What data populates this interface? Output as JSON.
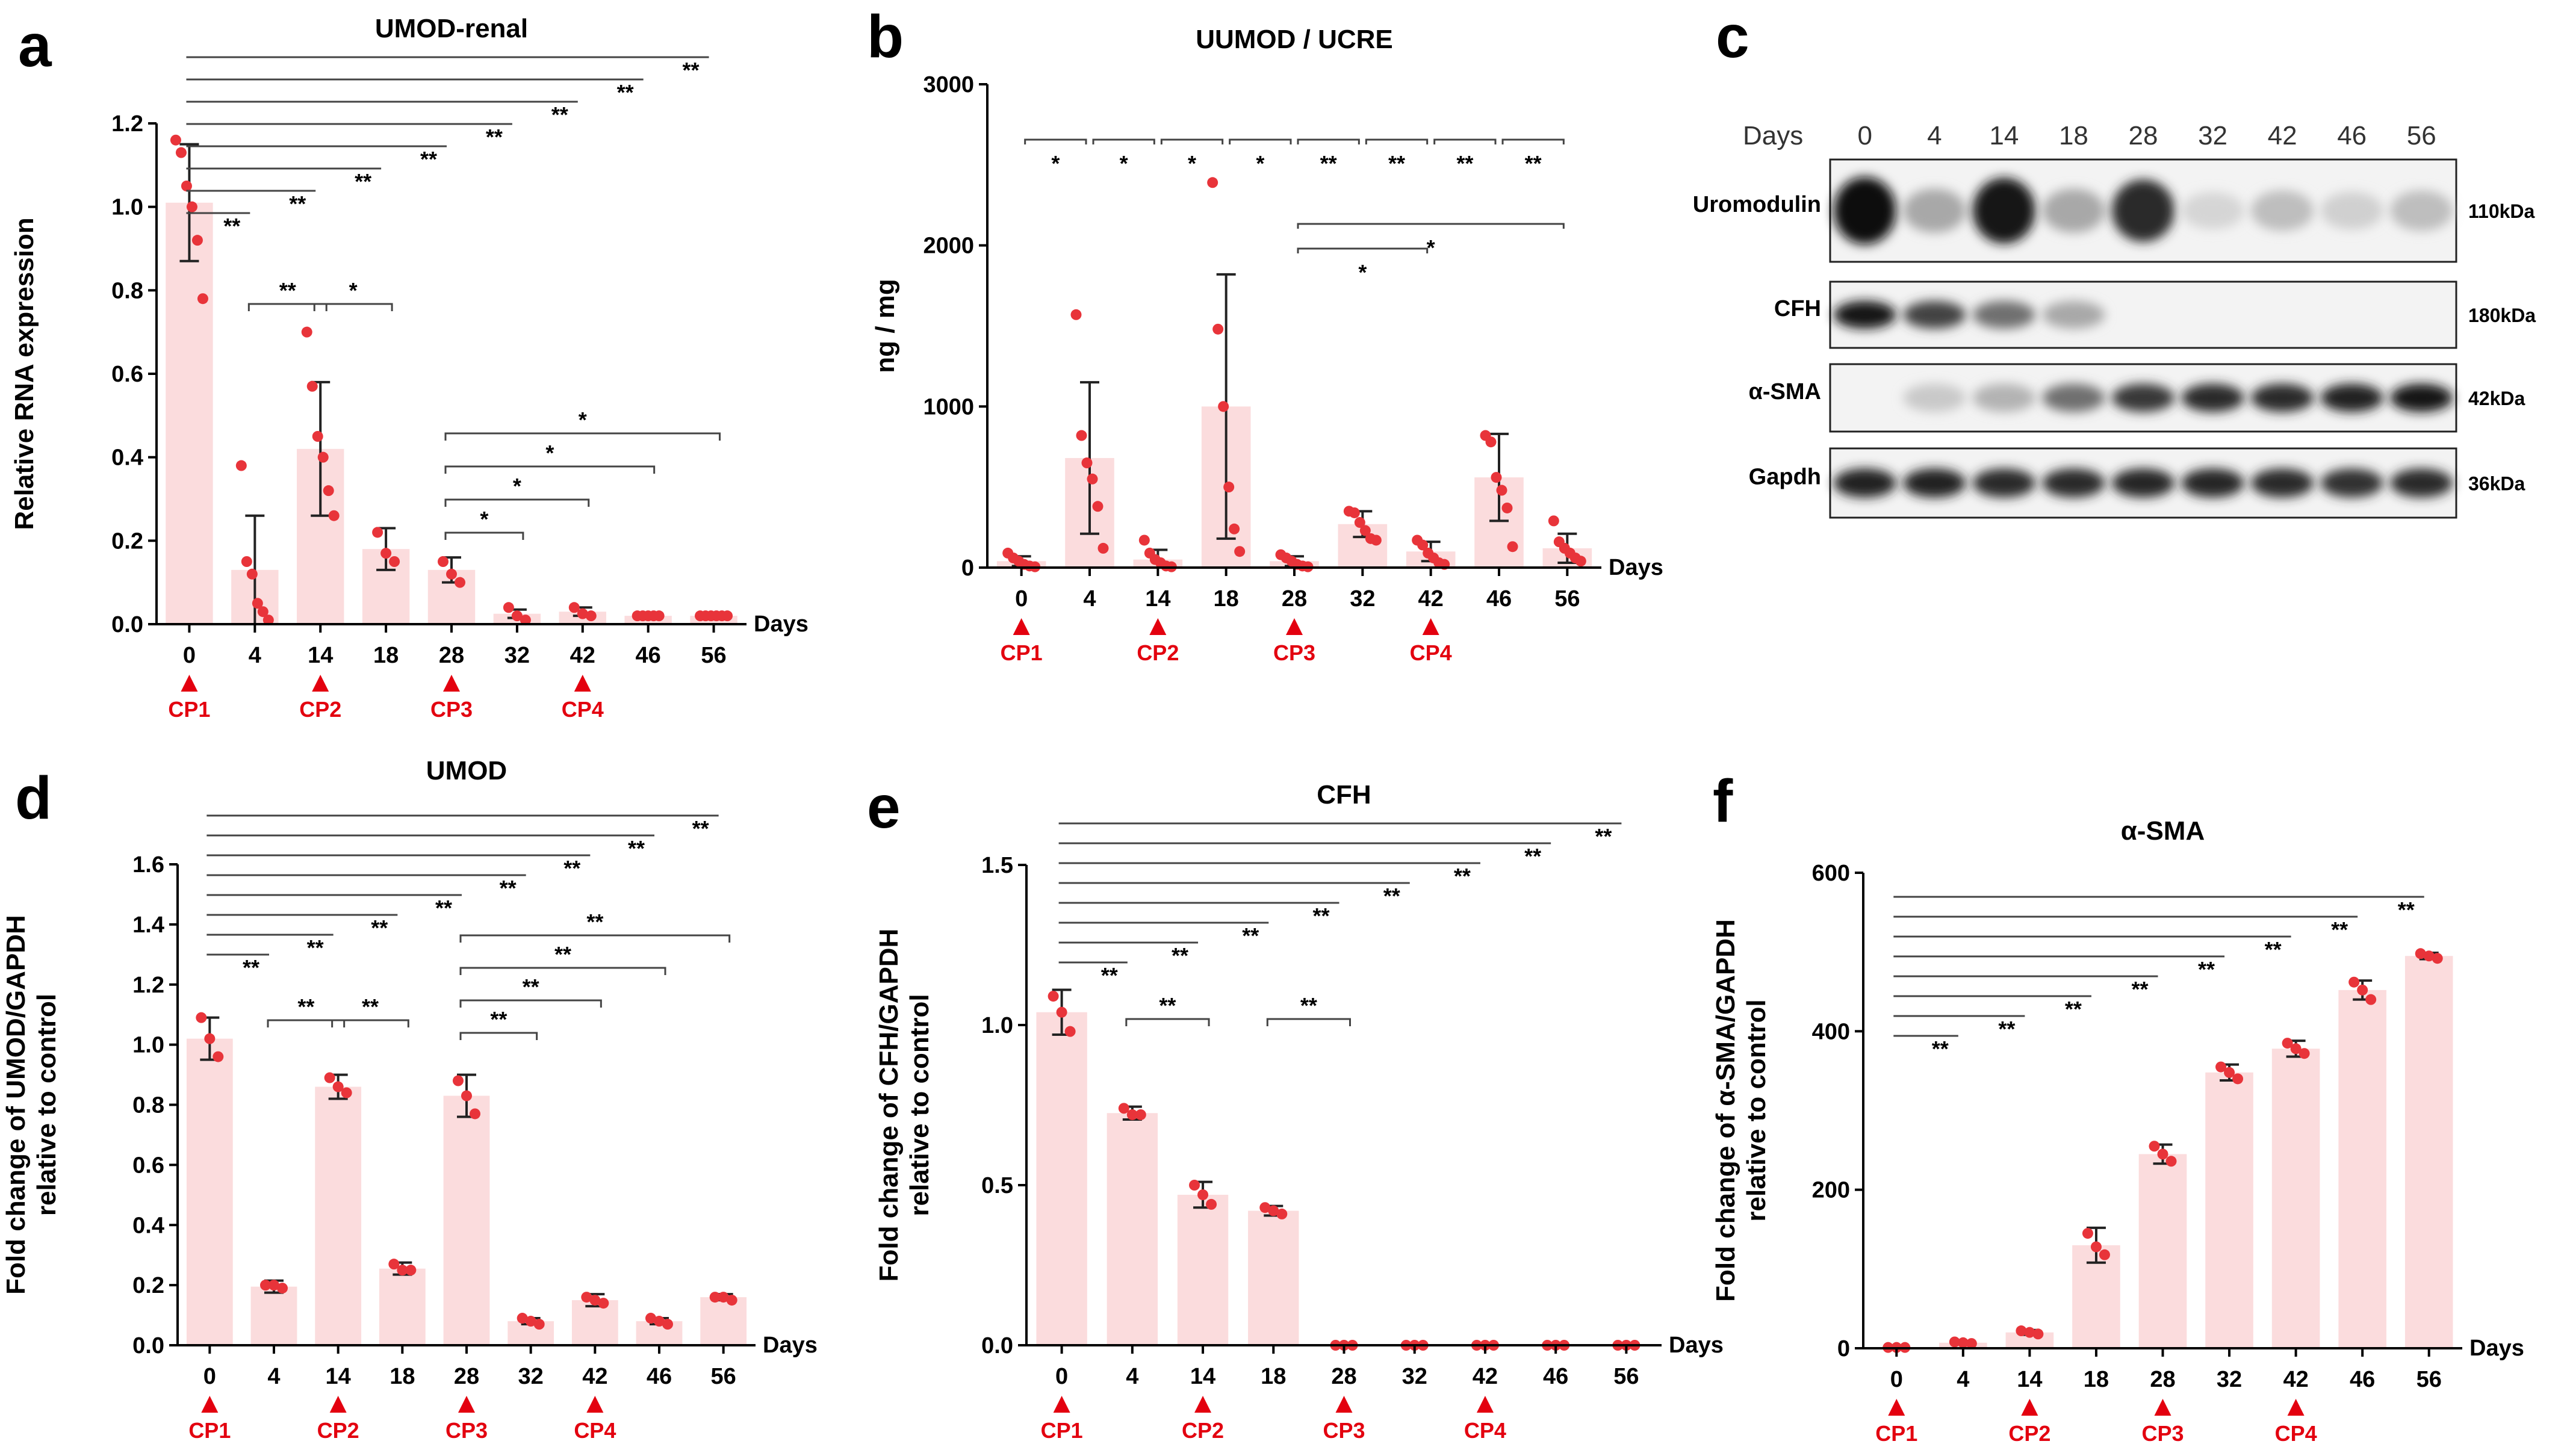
{
  "panels": [
    {
      "id": "a",
      "label": "a",
      "title": "UMOD-renal",
      "ylabel": "Relative RNA expression",
      "xlabel": "Days",
      "ylim": [
        0,
        1.2
      ],
      "yticks": [
        0,
        0.2,
        0.4,
        0.6,
        0.8,
        1.0,
        1.2
      ],
      "ytick_labels": [
        "0.0",
        "0.2",
        "0.4",
        "0.6",
        "0.8",
        "1.0",
        "1.2"
      ]
    },
    {
      "id": "b",
      "label": "b",
      "title": "UUMOD / UCRE",
      "ylabel": "ng / mg",
      "xlabel": "Days",
      "ylim": [
        0,
        3000
      ],
      "yticks": [
        0,
        1000,
        2000,
        3000
      ],
      "ytick_labels": [
        "0",
        "1000",
        "2000",
        "3000"
      ]
    },
    {
      "id": "d",
      "label": "d",
      "title": "UMOD",
      "ylabel": "Fold change of UMOD/GAPDH relative to control",
      "xlabel": "Days",
      "ylim": [
        0,
        1.6
      ],
      "yticks": [
        0,
        0.2,
        0.4,
        0.6,
        0.8,
        1.0,
        1.2,
        1.4,
        1.6
      ],
      "ytick_labels": [
        "0.0",
        "0.2",
        "0.4",
        "0.6",
        "0.8",
        "1.0",
        "1.2",
        "1.4",
        "1.6"
      ]
    },
    {
      "id": "e",
      "label": "e",
      "title": "CFH",
      "ylabel": "Fold change of CFH/GAPDH relative to control",
      "xlabel": "Days",
      "ylim": [
        0,
        1.5
      ],
      "yticks": [
        0,
        0.5,
        1.0,
        1.5
      ],
      "ytick_labels": [
        "0.0",
        "0.5",
        "1.0",
        "1.5"
      ]
    },
    {
      "id": "f",
      "label": "f",
      "title": "α-SMA",
      "ylabel": "Fold change of α-SMA/GAPDH relative to control",
      "xlabel": "Days",
      "ylim": [
        0,
        600
      ],
      "yticks": [
        0,
        200,
        400,
        600
      ],
      "ytick_labels": [
        "0",
        "200",
        "400",
        "600"
      ]
    }
  ],
  "chart_data": [
    {
      "panel": "a",
      "type": "bar",
      "title": "UMOD-renal",
      "categories": [
        "0",
        "4",
        "14",
        "18",
        "28",
        "32",
        "42",
        "46",
        "56"
      ],
      "values": [
        1.01,
        0.13,
        0.42,
        0.18,
        0.13,
        0.025,
        0.03,
        0.02,
        0.02
      ],
      "err": [
        0.14,
        0.13,
        0.16,
        0.05,
        0.03,
        0.01,
        0.01,
        0.005,
        0.005
      ],
      "points": [
        [
          1.16,
          1.13,
          1.05,
          1.0,
          0.92,
          0.78
        ],
        [
          0.38,
          0.15,
          0.12,
          0.05,
          0.03,
          0.01
        ],
        [
          0.7,
          0.57,
          0.45,
          0.4,
          0.32,
          0.26
        ],
        [
          0.22,
          0.17,
          0.15
        ],
        [
          0.15,
          0.12,
          0.1
        ],
        [
          0.04,
          0.02,
          0.01
        ],
        [
          0.04,
          0.025,
          0.02
        ],
        [
          0.02,
          0.02,
          0.02,
          0.02,
          0.02
        ],
        [
          0.02,
          0.02,
          0.02,
          0.02,
          0.02,
          0.02
        ]
      ],
      "ylim": [
        0,
        1.2
      ],
      "xlabel": "Days",
      "ylabel": "Relative RNA expression",
      "significance": [
        {
          "from": "0",
          "to": "4",
          "label": "**"
        },
        {
          "from": "0",
          "to": "14",
          "label": "**"
        },
        {
          "from": "0",
          "to": "18",
          "label": "**"
        },
        {
          "from": "0",
          "to": "28",
          "label": "**"
        },
        {
          "from": "0",
          "to": "32",
          "label": "**"
        },
        {
          "from": "0",
          "to": "42",
          "label": "**"
        },
        {
          "from": "0",
          "to": "46",
          "label": "**"
        },
        {
          "from": "0",
          "to": "56",
          "label": "**"
        },
        {
          "from": "4",
          "to": "14",
          "label": "**"
        },
        {
          "from": "14",
          "to": "18",
          "label": "*"
        },
        {
          "from": "28",
          "to": "32",
          "label": "*"
        },
        {
          "from": "28",
          "to": "42",
          "label": "*"
        },
        {
          "from": "28",
          "to": "46",
          "label": "*"
        },
        {
          "from": "28",
          "to": "56",
          "label": "*"
        }
      ],
      "markers": {
        "0": "CP1",
        "14": "CP2",
        "28": "CP3",
        "42": "CP4"
      }
    },
    {
      "panel": "b",
      "type": "bar",
      "title": "UUMOD / UCRE",
      "categories": [
        "0",
        "4",
        "14",
        "18",
        "28",
        "32",
        "42",
        "46",
        "56"
      ],
      "values": [
        40,
        680,
        50,
        1000,
        40,
        270,
        100,
        560,
        120
      ],
      "err": [
        30,
        470,
        60,
        820,
        30,
        80,
        60,
        270,
        90
      ],
      "points": [
        [
          90,
          60,
          40,
          20,
          10,
          5
        ],
        [
          1570,
          820,
          650,
          550,
          380,
          120
        ],
        [
          170,
          90,
          50,
          30,
          10,
          5
        ],
        [
          2390,
          1480,
          1000,
          500,
          240,
          100
        ],
        [
          80,
          60,
          40,
          20,
          10,
          5
        ],
        [
          350,
          340,
          280,
          230,
          180,
          170
        ],
        [
          170,
          140,
          90,
          60,
          30,
          20
        ],
        [
          820,
          780,
          560,
          480,
          370,
          130
        ],
        [
          290,
          160,
          120,
          90,
          60,
          40
        ]
      ],
      "ylim": [
        0,
        3000
      ],
      "xlabel": "Days",
      "ylabel": "ng / mg",
      "significance": [
        {
          "from": "0",
          "to": "4",
          "label": "*"
        },
        {
          "from": "4",
          "to": "14",
          "label": "*"
        },
        {
          "from": "14",
          "to": "18",
          "label": "*"
        },
        {
          "from": "18",
          "to": "28",
          "label": "*"
        },
        {
          "from": "28",
          "to": "32",
          "label": "**"
        },
        {
          "from": "32",
          "to": "42",
          "label": "**"
        },
        {
          "from": "42",
          "to": "46",
          "label": "**"
        },
        {
          "from": "46",
          "to": "56",
          "label": "**"
        },
        {
          "from": "28",
          "to": "42",
          "label": "*"
        },
        {
          "from": "28",
          "to": "56",
          "label": "*"
        }
      ],
      "markers": {
        "0": "CP1",
        "14": "CP2",
        "28": "CP3",
        "42": "CP4"
      }
    },
    {
      "panel": "d",
      "type": "bar",
      "title": "UMOD",
      "categories": [
        "0",
        "4",
        "14",
        "18",
        "28",
        "32",
        "42",
        "46",
        "56"
      ],
      "values": [
        1.02,
        0.195,
        0.86,
        0.255,
        0.83,
        0.08,
        0.15,
        0.08,
        0.16
      ],
      "err": [
        0.07,
        0.02,
        0.04,
        0.02,
        0.07,
        0.01,
        0.02,
        0.01,
        0.01
      ],
      "points": [
        [
          1.09,
          1.02,
          0.96
        ],
        [
          0.2,
          0.2,
          0.19
        ],
        [
          0.89,
          0.86,
          0.84
        ],
        [
          0.27,
          0.25,
          0.25
        ],
        [
          0.88,
          0.83,
          0.77
        ],
        [
          0.09,
          0.08,
          0.07
        ],
        [
          0.16,
          0.15,
          0.14
        ],
        [
          0.09,
          0.08,
          0.07
        ],
        [
          0.16,
          0.16,
          0.15
        ]
      ],
      "ylim": [
        0,
        1.6
      ],
      "xlabel": "Days",
      "ylabel": "Fold change of UMOD/GAPDH relative to control",
      "significance": [
        {
          "from": "0",
          "to": "4",
          "label": "**"
        },
        {
          "from": "0",
          "to": "14",
          "label": "**"
        },
        {
          "from": "0",
          "to": "18",
          "label": "**"
        },
        {
          "from": "0",
          "to": "28",
          "label": "**"
        },
        {
          "from": "0",
          "to": "32",
          "label": "**"
        },
        {
          "from": "0",
          "to": "42",
          "label": "**"
        },
        {
          "from": "0",
          "to": "46",
          "label": "**"
        },
        {
          "from": "0",
          "to": "56",
          "label": "**"
        },
        {
          "from": "4",
          "to": "14",
          "label": "**"
        },
        {
          "from": "14",
          "to": "18",
          "label": "**"
        },
        {
          "from": "28",
          "to": "32",
          "label": "**"
        },
        {
          "from": "28",
          "to": "42",
          "label": "**"
        },
        {
          "from": "28",
          "to": "46",
          "label": "**"
        },
        {
          "from": "28",
          "to": "56",
          "label": "**"
        }
      ],
      "markers": {
        "0": "CP1",
        "14": "CP2",
        "28": "CP3",
        "42": "CP4"
      }
    },
    {
      "panel": "e",
      "type": "bar",
      "title": "CFH",
      "categories": [
        "0",
        "4",
        "14",
        "18",
        "28",
        "32",
        "42",
        "46",
        "56"
      ],
      "values": [
        1.04,
        0.725,
        0.47,
        0.42,
        0.0,
        0.0,
        0.0,
        0.0,
        0.0
      ],
      "err": [
        0.07,
        0.02,
        0.04,
        0.015,
        0,
        0,
        0,
        0,
        0
      ],
      "points": [
        [
          1.09,
          1.04,
          0.98
        ],
        [
          0.74,
          0.72,
          0.72
        ],
        [
          0.5,
          0.47,
          0.44
        ],
        [
          0.43,
          0.42,
          0.41
        ],
        [
          0,
          0,
          0
        ],
        [
          0,
          0,
          0
        ],
        [
          0,
          0,
          0
        ],
        [
          0,
          0,
          0
        ],
        [
          0,
          0,
          0
        ]
      ],
      "ylim": [
        0,
        1.5
      ],
      "xlabel": "Days",
      "ylabel": "Fold change of CFH/GAPDH relative to control",
      "significance": [
        {
          "from": "0",
          "to": "4",
          "label": "**"
        },
        {
          "from": "0",
          "to": "14",
          "label": "**"
        },
        {
          "from": "0",
          "to": "18",
          "label": "**"
        },
        {
          "from": "0",
          "to": "28",
          "label": "**"
        },
        {
          "from": "0",
          "to": "32",
          "label": "**"
        },
        {
          "from": "0",
          "to": "42",
          "label": "**"
        },
        {
          "from": "0",
          "to": "46",
          "label": "**"
        },
        {
          "from": "0",
          "to": "56",
          "label": "**"
        },
        {
          "from": "4",
          "to": "14",
          "label": "**"
        },
        {
          "from": "18",
          "to": "28",
          "label": "**"
        }
      ],
      "markers": {
        "0": "CP1",
        "14": "CP2",
        "28": "CP3",
        "42": "CP4"
      }
    },
    {
      "panel": "f",
      "type": "bar",
      "title": "α-SMA",
      "categories": [
        "0",
        "4",
        "14",
        "18",
        "28",
        "32",
        "42",
        "46",
        "56"
      ],
      "values": [
        1,
        7,
        20,
        130,
        245,
        348,
        378,
        452,
        495
      ],
      "err": [
        0.5,
        2,
        3,
        22,
        12,
        10,
        10,
        12,
        4
      ],
      "points": [
        [
          1,
          1,
          1
        ],
        [
          8,
          7,
          6
        ],
        [
          22,
          20,
          18
        ],
        [
          145,
          128,
          118
        ],
        [
          255,
          245,
          236
        ],
        [
          355,
          348,
          340
        ],
        [
          385,
          378,
          372
        ],
        [
          462,
          452,
          440
        ],
        [
          498,
          495,
          492
        ]
      ],
      "ylim": [
        0,
        600
      ],
      "xlabel": "Days",
      "ylabel": "Fold change of α-SMA/GAPDH relative to control",
      "significance": [
        {
          "from": "0",
          "to": "4",
          "label": "**"
        },
        {
          "from": "0",
          "to": "14",
          "label": "**"
        },
        {
          "from": "0",
          "to": "18",
          "label": "**"
        },
        {
          "from": "0",
          "to": "28",
          "label": "**"
        },
        {
          "from": "0",
          "to": "32",
          "label": "**"
        },
        {
          "from": "0",
          "to": "42",
          "label": "**"
        },
        {
          "from": "0",
          "to": "46",
          "label": "**"
        },
        {
          "from": "0",
          "to": "56",
          "label": "**"
        }
      ],
      "markers": {
        "0": "CP1",
        "14": "CP2",
        "28": "CP3",
        "42": "CP4"
      }
    }
  ],
  "blot": {
    "label": "c",
    "days_label": "Days",
    "days": [
      "0",
      "4",
      "14",
      "18",
      "28",
      "32",
      "42",
      "46",
      "56"
    ],
    "rows": [
      {
        "name": "Uromodulin",
        "kda": "110kDa",
        "intensity": [
          1.0,
          0.3,
          0.95,
          0.3,
          0.85,
          0.1,
          0.2,
          0.12,
          0.2
        ]
      },
      {
        "name": "CFH",
        "kda": "180kDa",
        "intensity": [
          0.95,
          0.75,
          0.55,
          0.3,
          0,
          0,
          0,
          0,
          0
        ]
      },
      {
        "name": "α-SMA",
        "kda": "42kDa",
        "intensity": [
          0,
          0.15,
          0.25,
          0.55,
          0.8,
          0.85,
          0.85,
          0.9,
          0.95
        ]
      },
      {
        "name": "Gapdh",
        "kda": "36kDa",
        "intensity": [
          0.9,
          0.9,
          0.85,
          0.85,
          0.88,
          0.88,
          0.85,
          0.82,
          0.85
        ]
      }
    ]
  }
}
